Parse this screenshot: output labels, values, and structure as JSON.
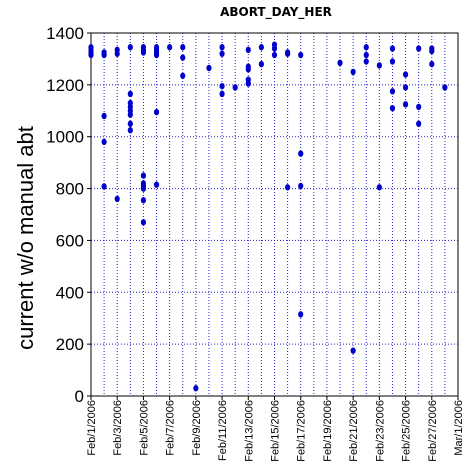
{
  "chart_data": {
    "type": "scatter",
    "title": "ABORT_DAY_HER",
    "xlabel": "",
    "ylabel": "current w/o manual abt",
    "ylim": [
      0,
      1400
    ],
    "yticks": [
      0,
      200,
      400,
      600,
      800,
      1000,
      1200,
      1400
    ],
    "xticks": [
      "Feb/1/2006",
      "Feb/3/2006",
      "Feb/5/2006",
      "Feb/7/2006",
      "Feb/9/2006",
      "Feb/11/2006",
      "Feb/13/2006",
      "Feb/15/2006",
      "Feb/17/2006",
      "Feb/19/2006",
      "Feb/21/2006",
      "Feb/23/2006",
      "Feb/25/2006",
      "Feb/27/2006",
      "Mar/1/2006"
    ],
    "grid": "dotted blue, horizontal and vertical",
    "marker_color": "#0000cc",
    "axis_color": "#000000",
    "grid_color": "#2222cc",
    "points": [
      {
        "x": "Feb/1/2006",
        "y": 1345
      },
      {
        "x": "Feb/1/2006",
        "y": 1335
      },
      {
        "x": "Feb/1/2006",
        "y": 1325
      },
      {
        "x": "Feb/1/2006",
        "y": 1315
      },
      {
        "x": "Feb/2/2006",
        "y": 1325
      },
      {
        "x": "Feb/2/2006",
        "y": 1315
      },
      {
        "x": "Feb/2/2006",
        "y": 1080
      },
      {
        "x": "Feb/2/2006",
        "y": 980
      },
      {
        "x": "Feb/2/2006",
        "y": 808
      },
      {
        "x": "Feb/3/2006",
        "y": 1335
      },
      {
        "x": "Feb/3/2006",
        "y": 1320
      },
      {
        "x": "Feb/3/2006",
        "y": 760
      },
      {
        "x": "Feb/4/2006",
        "y": 1345
      },
      {
        "x": "Feb/4/2006",
        "y": 1165
      },
      {
        "x": "Feb/4/2006",
        "y": 1130
      },
      {
        "x": "Feb/4/2006",
        "y": 1115
      },
      {
        "x": "Feb/4/2006",
        "y": 1100
      },
      {
        "x": "Feb/4/2006",
        "y": 1085
      },
      {
        "x": "Feb/4/2006",
        "y": 1050
      },
      {
        "x": "Feb/4/2006",
        "y": 1025
      },
      {
        "x": "Feb/5/2006",
        "y": 1345
      },
      {
        "x": "Feb/5/2006",
        "y": 1335
      },
      {
        "x": "Feb/5/2006",
        "y": 1325
      },
      {
        "x": "Feb/5/2006",
        "y": 850
      },
      {
        "x": "Feb/5/2006",
        "y": 820
      },
      {
        "x": "Feb/5/2006",
        "y": 810
      },
      {
        "x": "Feb/5/2006",
        "y": 800
      },
      {
        "x": "Feb/5/2006",
        "y": 755
      },
      {
        "x": "Feb/5/2006",
        "y": 670
      },
      {
        "x": "Feb/6/2006",
        "y": 1345
      },
      {
        "x": "Feb/6/2006",
        "y": 1335
      },
      {
        "x": "Feb/6/2006",
        "y": 1325
      },
      {
        "x": "Feb/6/2006",
        "y": 1315
      },
      {
        "x": "Feb/6/2006",
        "y": 1095
      },
      {
        "x": "Feb/6/2006",
        "y": 815
      },
      {
        "x": "Feb/7/2006",
        "y": 1345
      },
      {
        "x": "Feb/8/2006",
        "y": 1345
      },
      {
        "x": "Feb/8/2006",
        "y": 1305
      },
      {
        "x": "Feb/8/2006",
        "y": 1235
      },
      {
        "x": "Feb/9/2006",
        "y": 30
      },
      {
        "x": "Feb/10/2006",
        "y": 1265
      },
      {
        "x": "Feb/11/2006",
        "y": 1345
      },
      {
        "x": "Feb/11/2006",
        "y": 1320
      },
      {
        "x": "Feb/11/2006",
        "y": 1195
      },
      {
        "x": "Feb/11/2006",
        "y": 1165
      },
      {
        "x": "Feb/12/2006",
        "y": 1190
      },
      {
        "x": "Feb/13/2006",
        "y": 1335
      },
      {
        "x": "Feb/13/2006",
        "y": 1270
      },
      {
        "x": "Feb/13/2006",
        "y": 1260
      },
      {
        "x": "Feb/13/2006",
        "y": 1220
      },
      {
        "x": "Feb/13/2006",
        "y": 1205
      },
      {
        "x": "Feb/14/2006",
        "y": 1345
      },
      {
        "x": "Feb/14/2006",
        "y": 1280
      },
      {
        "x": "Feb/15/2006",
        "y": 1355
      },
      {
        "x": "Feb/15/2006",
        "y": 1340
      },
      {
        "x": "Feb/15/2006",
        "y": 1315
      },
      {
        "x": "Feb/16/2006",
        "y": 1325
      },
      {
        "x": "Feb/16/2006",
        "y": 1320
      },
      {
        "x": "Feb/16/2006",
        "y": 805
      },
      {
        "x": "Feb/17/2006",
        "y": 1315
      },
      {
        "x": "Feb/17/2006",
        "y": 935
      },
      {
        "x": "Feb/17/2006",
        "y": 810
      },
      {
        "x": "Feb/17/2006",
        "y": 315
      },
      {
        "x": "Feb/20/2006",
        "y": 1285
      },
      {
        "x": "Feb/21/2006",
        "y": 1250
      },
      {
        "x": "Feb/21/2006",
        "y": 175
      },
      {
        "x": "Feb/22/2006",
        "y": 1345
      },
      {
        "x": "Feb/22/2006",
        "y": 1315
      },
      {
        "x": "Feb/22/2006",
        "y": 1290
      },
      {
        "x": "Feb/23/2006",
        "y": 1275
      },
      {
        "x": "Feb/23/2006",
        "y": 805
      },
      {
        "x": "Feb/24/2006",
        "y": 1340
      },
      {
        "x": "Feb/24/2006",
        "y": 1290
      },
      {
        "x": "Feb/24/2006",
        "y": 1175
      },
      {
        "x": "Feb/24/2006",
        "y": 1110
      },
      {
        "x": "Feb/25/2006",
        "y": 1240
      },
      {
        "x": "Feb/25/2006",
        "y": 1190
      },
      {
        "x": "Feb/25/2006",
        "y": 1125
      },
      {
        "x": "Feb/26/2006",
        "y": 1340
      },
      {
        "x": "Feb/26/2006",
        "y": 1115
      },
      {
        "x": "Feb/26/2006",
        "y": 1050
      },
      {
        "x": "Feb/27/2006",
        "y": 1340
      },
      {
        "x": "Feb/27/2006",
        "y": 1330
      },
      {
        "x": "Feb/27/2006",
        "y": 1280
      },
      {
        "x": "Feb/28/2006",
        "y": 1190
      }
    ]
  }
}
